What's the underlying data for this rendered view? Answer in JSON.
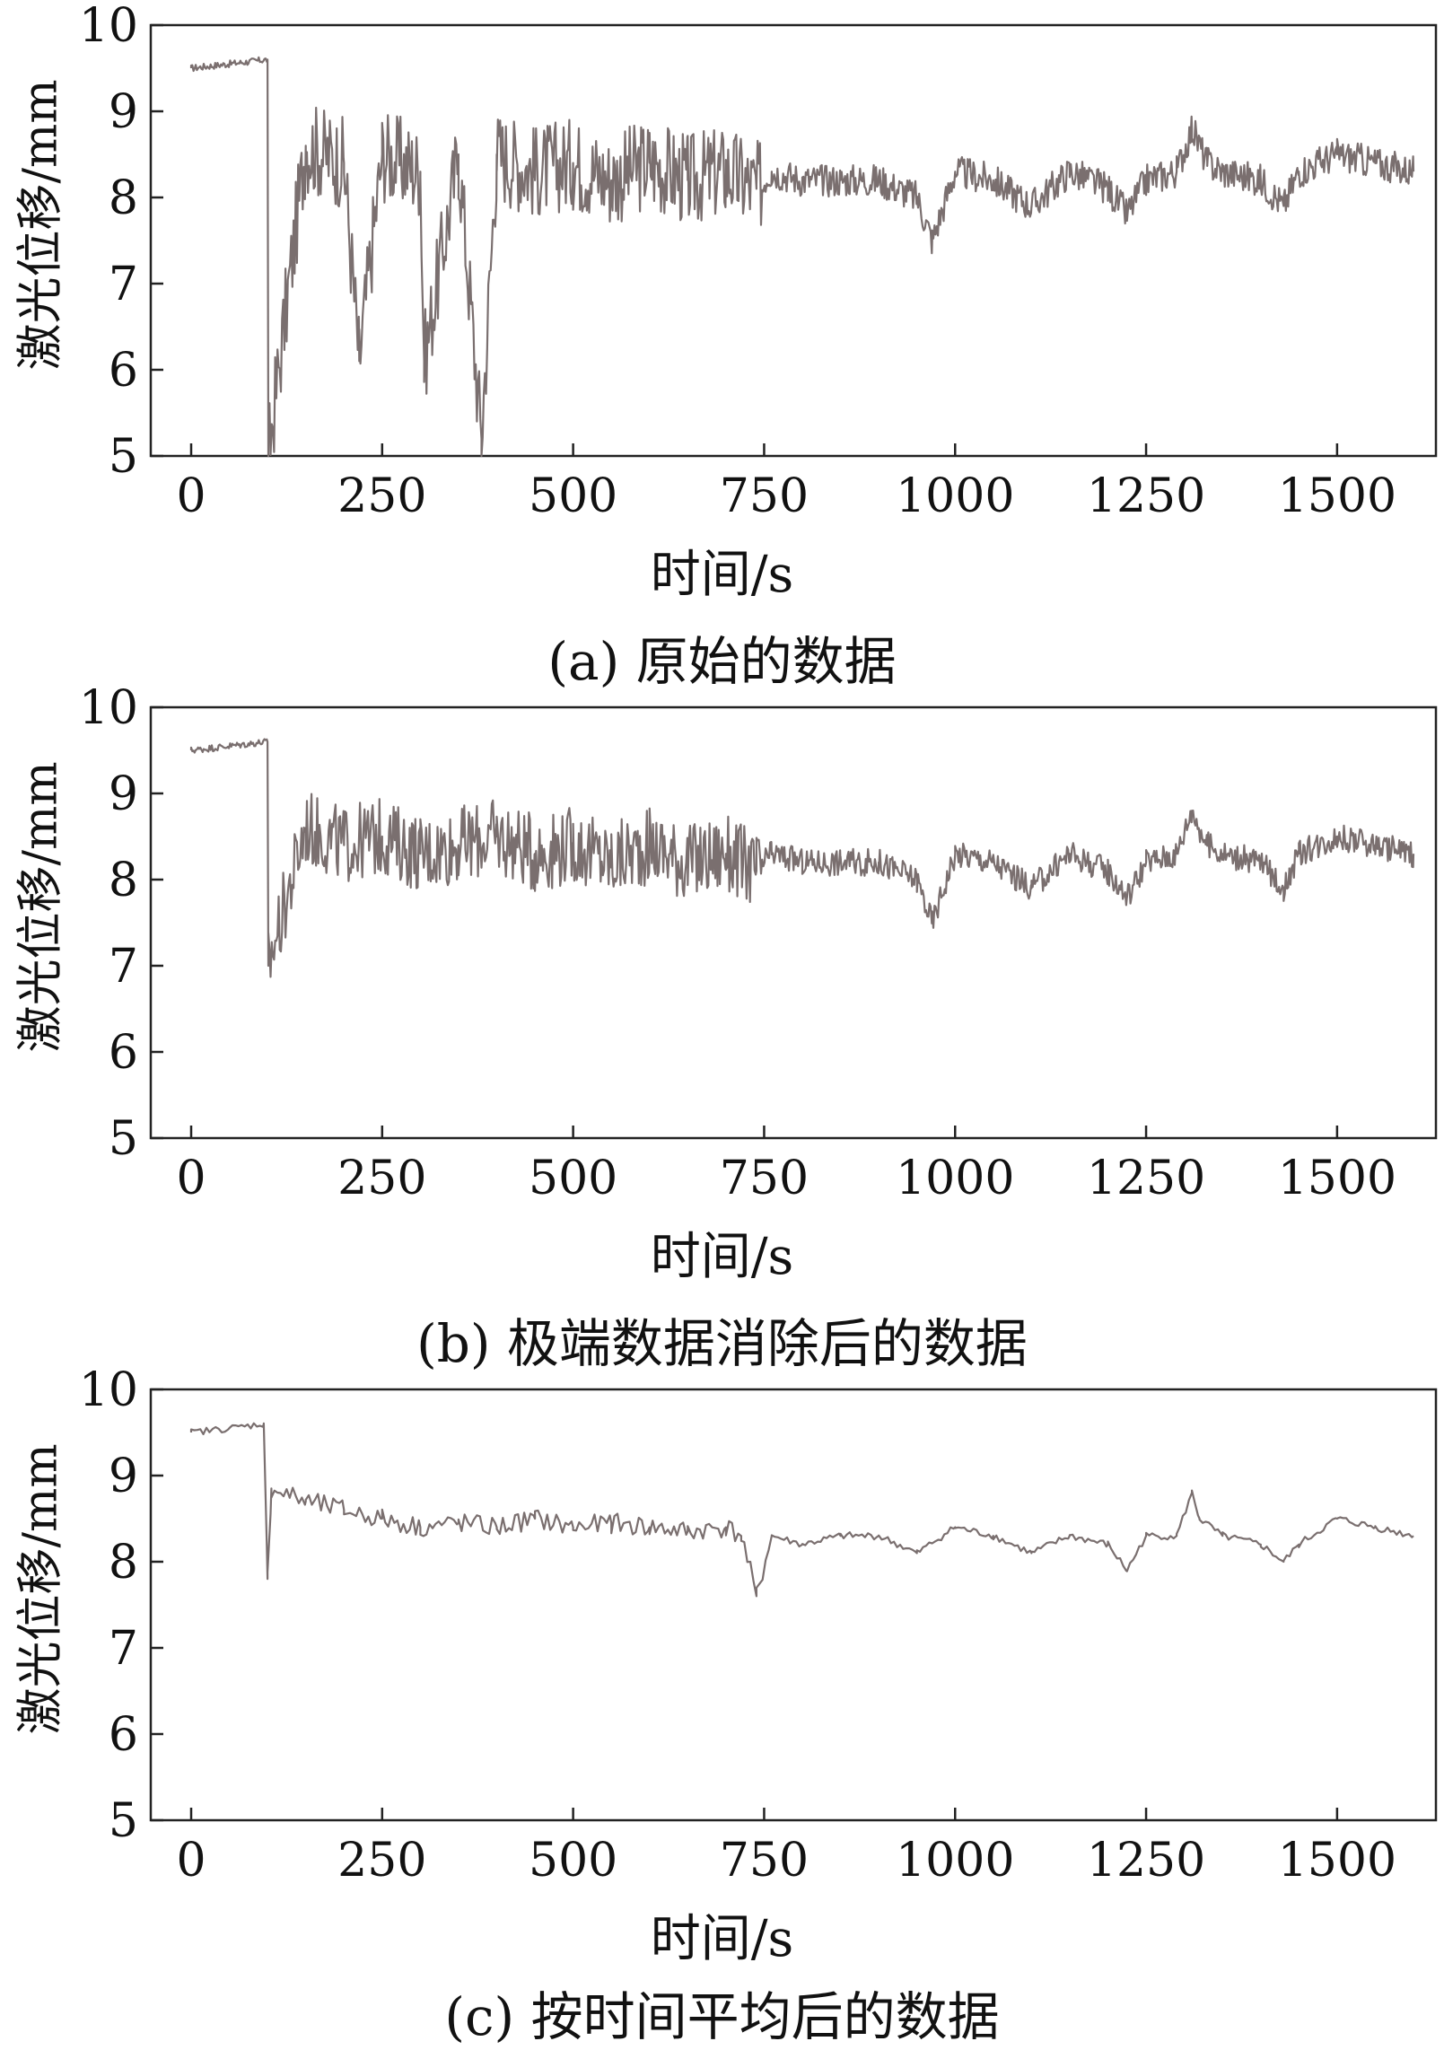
{
  "chart_data": [
    {
      "type": "line",
      "panel_label": "(a) 原始的数据",
      "xlabel": "时间/s",
      "ylabel": "激光位移/mm",
      "xlim": [
        0,
        1600
      ],
      "ylim": [
        5,
        10
      ],
      "xticks": [
        "0",
        "250",
        "500",
        "750",
        "1000",
        "1250",
        "1500"
      ],
      "yticks": [
        "5",
        "6",
        "7",
        "8",
        "9",
        "10"
      ],
      "line_color": "#7a6f6f",
      "series": [
        {
          "x": [
            0,
            100,
            101,
            150,
            200,
            220,
            250,
            300,
            305,
            350,
            380,
            400,
            450,
            500,
            550,
            600,
            650,
            700,
            740,
            760,
            800,
            850,
            900,
            950,
            970,
            1000,
            1050,
            1100,
            1150,
            1200,
            1225,
            1250,
            1290,
            1310,
            1330,
            1350,
            1400,
            1430,
            1450,
            1500,
            1550,
            1600
          ],
          "y": [
            9.5,
            9.6,
            5.0,
            8.6,
            8.4,
            6.1,
            8.5,
            8.3,
            6.1,
            8.5,
            5.2,
            8.5,
            8.3,
            8.4,
            8.2,
            8.4,
            8.2,
            8.3,
            8.1,
            8.3,
            8.2,
            8.2,
            8.2,
            8.0,
            7.5,
            8.3,
            8.2,
            7.9,
            8.3,
            8.1,
            7.8,
            8.2,
            8.3,
            8.8,
            8.4,
            8.3,
            8.2,
            7.9,
            8.3,
            8.5,
            8.4,
            8.3
          ]
        }
      ]
    },
    {
      "type": "line",
      "panel_label": "(b) 极端数据消除后的数据",
      "xlabel": "时间/s",
      "ylabel": "激光位移/mm",
      "xlim": [
        0,
        1600
      ],
      "ylim": [
        5,
        10
      ],
      "xticks": [
        "0",
        "250",
        "500",
        "750",
        "1000",
        "1250",
        "1500"
      ],
      "yticks": [
        "5",
        "6",
        "7",
        "8",
        "9",
        "10"
      ],
      "line_color": "#7a6f6f",
      "series": [
        {
          "x": [
            0,
            100,
            101,
            150,
            200,
            250,
            300,
            350,
            400,
            450,
            500,
            550,
            600,
            650,
            700,
            740,
            760,
            800,
            850,
            900,
            950,
            970,
            1000,
            1050,
            1100,
            1150,
            1200,
            1225,
            1250,
            1290,
            1310,
            1330,
            1350,
            1400,
            1430,
            1450,
            1500,
            1550,
            1600
          ],
          "y": [
            9.5,
            9.6,
            7.0,
            8.6,
            8.4,
            8.5,
            8.3,
            8.4,
            8.5,
            8.3,
            8.4,
            8.2,
            8.4,
            8.2,
            8.3,
            8.1,
            8.3,
            8.2,
            8.2,
            8.2,
            8.0,
            7.5,
            8.3,
            8.2,
            7.9,
            8.3,
            8.1,
            7.8,
            8.2,
            8.3,
            8.8,
            8.4,
            8.3,
            8.2,
            7.9,
            8.3,
            8.5,
            8.4,
            8.3
          ]
        }
      ]
    },
    {
      "type": "line",
      "panel_label": "(c) 按时间平均后的数据",
      "xlabel": "时间/s",
      "ylabel": "激光位移/mm",
      "xlim": [
        0,
        1600
      ],
      "ylim": [
        5,
        10
      ],
      "xticks": [
        "0",
        "250",
        "500",
        "750",
        "1000",
        "1250",
        "1500"
      ],
      "yticks": [
        "5",
        "6",
        "7",
        "8",
        "9",
        "10"
      ],
      "line_color": "#7a6f6f",
      "series": [
        {
          "x": [
            0,
            50,
            95,
            100,
            105,
            150,
            200,
            250,
            300,
            350,
            400,
            450,
            500,
            550,
            600,
            650,
            700,
            720,
            740,
            760,
            800,
            850,
            900,
            950,
            1000,
            1050,
            1100,
            1150,
            1200,
            1225,
            1250,
            1290,
            1310,
            1320,
            1350,
            1400,
            1430,
            1450,
            1500,
            1550,
            1600
          ],
          "y": [
            9.5,
            9.55,
            9.6,
            7.8,
            8.85,
            8.7,
            8.6,
            8.5,
            8.4,
            8.45,
            8.4,
            8.5,
            8.4,
            8.45,
            8.4,
            8.35,
            8.4,
            8.3,
            7.6,
            8.3,
            8.2,
            8.3,
            8.3,
            8.1,
            8.4,
            8.3,
            8.1,
            8.3,
            8.2,
            7.9,
            8.3,
            8.3,
            8.8,
            8.5,
            8.3,
            8.2,
            8.0,
            8.2,
            8.5,
            8.4,
            8.3
          ]
        }
      ]
    }
  ]
}
